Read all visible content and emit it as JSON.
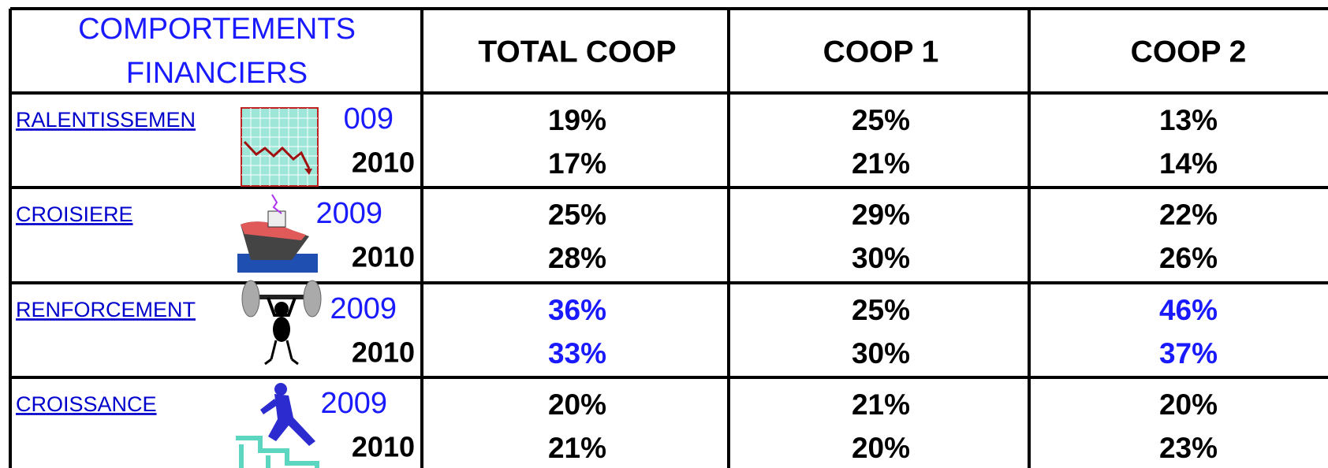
{
  "header": {
    "title_lines": [
      "COMPORTEMENTS",
      "FINANCIERS"
    ],
    "columns": [
      "TOTAL COOP",
      "COOP 1",
      "COOP 2"
    ]
  },
  "rows": [
    {
      "label": "RALENTISSEMEN",
      "years": [
        "009",
        "2010"
      ],
      "values": [
        [
          "19%",
          "25%",
          "13%"
        ],
        [
          "17%",
          "21%",
          "14%"
        ]
      ]
    },
    {
      "label": "CROISIERE",
      "years": [
        "2009",
        "2010"
      ],
      "values": [
        [
          "25%",
          "29%",
          "22%"
        ],
        [
          "28%",
          "30%",
          "26%"
        ]
      ]
    },
    {
      "label": "RENFORCEMENT",
      "years": [
        "2009",
        "2010"
      ],
      "values": [
        [
          "36%",
          "25%",
          "46%"
        ],
        [
          "33%",
          "30%",
          "37%"
        ]
      ]
    },
    {
      "label": "CROISSANCE",
      "years": [
        "2009",
        "2010"
      ],
      "values": [
        [
          "20%",
          "21%",
          "20%"
        ],
        [
          "21%",
          "20%",
          "23%"
        ]
      ]
    }
  ]
}
